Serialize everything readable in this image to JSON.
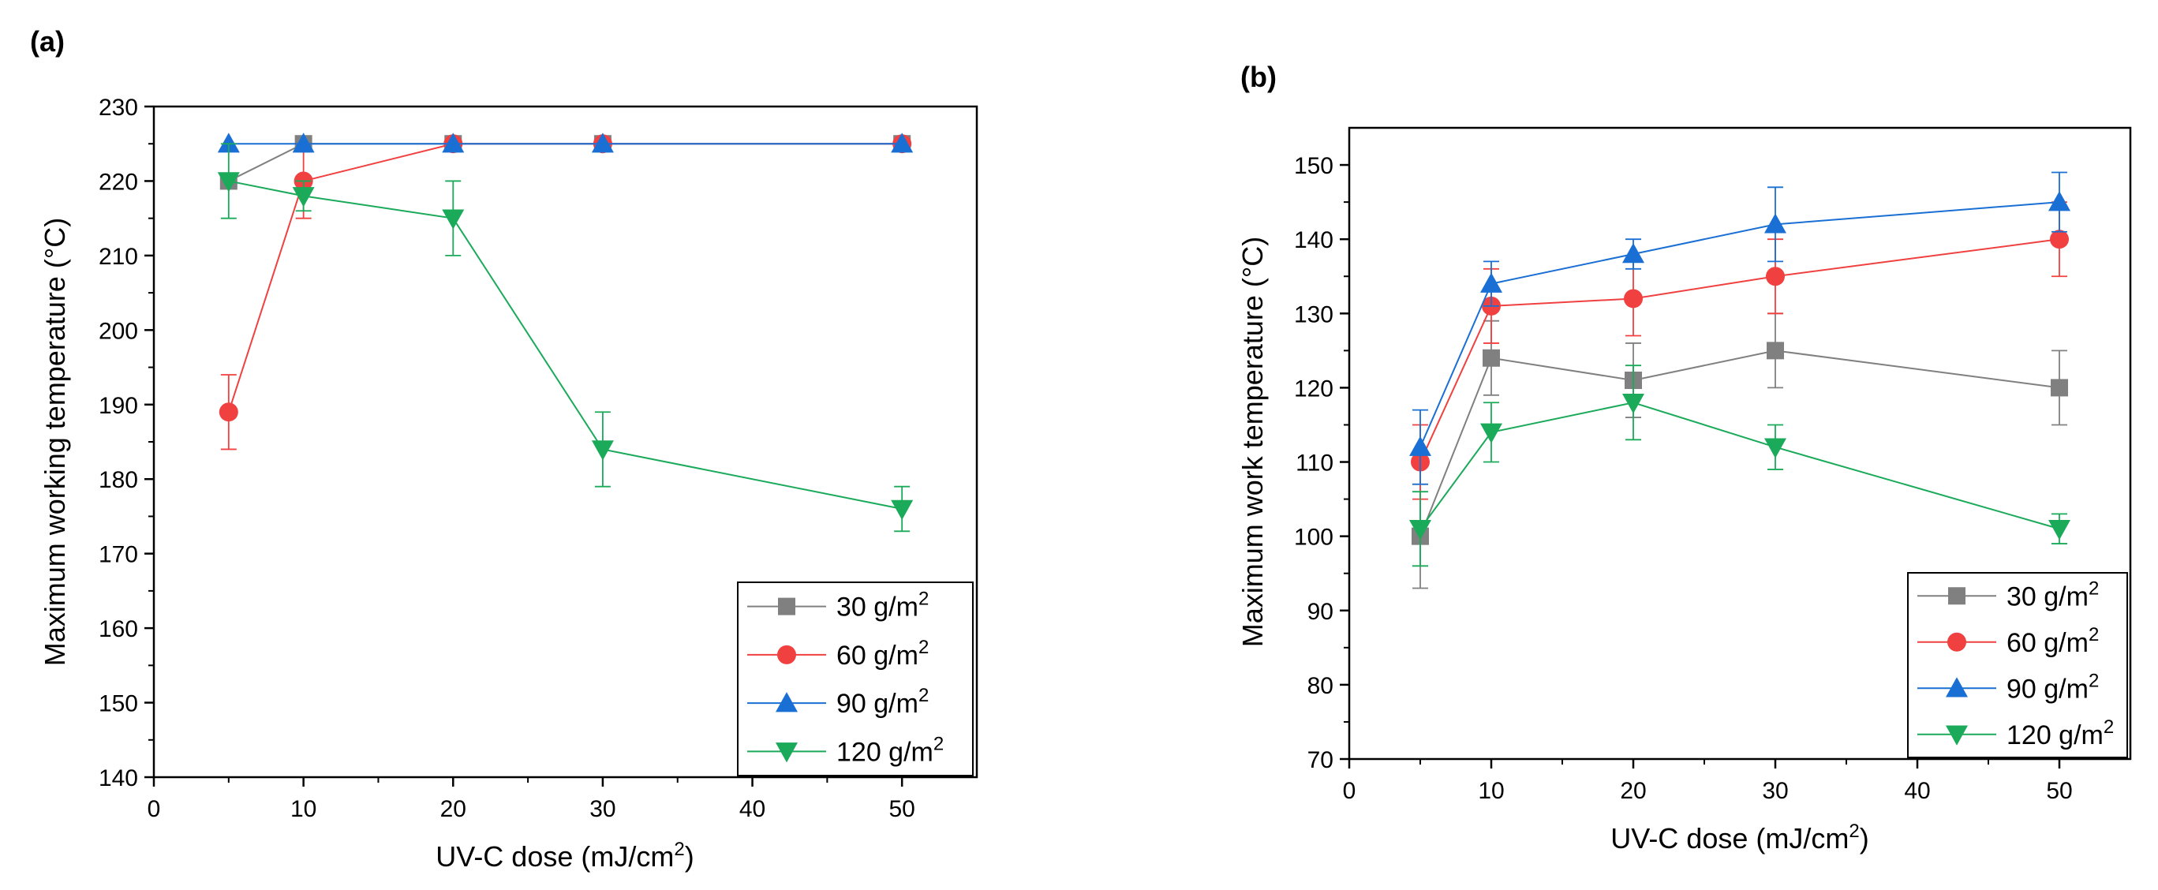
{
  "chart_data": [
    {
      "panel": "(a)",
      "type": "line",
      "xlabel": "UV-C dose (mJ/cm",
      "xlabel_sup": "2",
      "xlabel_end": ")",
      "ylabel": "Maximum working temperature (°C)",
      "xlim": [
        0,
        55
      ],
      "ylim": [
        140,
        230
      ],
      "xticks": [
        0,
        10,
        20,
        30,
        40,
        50
      ],
      "yticks": [
        140,
        150,
        160,
        170,
        180,
        190,
        200,
        210,
        220,
        230
      ],
      "legend_position": "bottom-right",
      "series": [
        {
          "name": "30 g/m",
          "sup": "2",
          "color": "#808080",
          "marker": "square",
          "x": [
            5,
            10,
            20,
            30,
            50
          ],
          "values": [
            220,
            225,
            225,
            225,
            225
          ],
          "errors": [
            0,
            0,
            0,
            0,
            0
          ]
        },
        {
          "name": "60 g/m",
          "sup": "2",
          "color": "#f04040",
          "marker": "circle",
          "x": [
            5,
            10,
            20,
            30,
            50
          ],
          "values": [
            189,
            220,
            225,
            225,
            225
          ],
          "errors": [
            5,
            5,
            0,
            0,
            0
          ]
        },
        {
          "name": "90 g/m",
          "sup": "2",
          "color": "#1a6fd4",
          "marker": "triangle-up",
          "x": [
            5,
            10,
            20,
            30,
            50
          ],
          "values": [
            225,
            225,
            225,
            225,
            225
          ],
          "errors": [
            0,
            0,
            0,
            0,
            0
          ]
        },
        {
          "name": "120 g/m",
          "sup": "2",
          "color": "#1aaa5a",
          "marker": "triangle-down",
          "x": [
            5,
            10,
            20,
            30,
            50
          ],
          "values": [
            220,
            218,
            215,
            184,
            176
          ],
          "errors": [
            5,
            2,
            5,
            5,
            3
          ]
        }
      ]
    },
    {
      "panel": "(b)",
      "type": "line",
      "xlabel": "UV-C dose (mJ/cm",
      "xlabel_sup": "2",
      "xlabel_end": ")",
      "ylabel": "Maximum work temperature (°C)",
      "xlim": [
        0,
        55
      ],
      "ylim": [
        70,
        155
      ],
      "xticks": [
        0,
        10,
        20,
        30,
        40,
        50
      ],
      "yticks": [
        70,
        80,
        90,
        100,
        110,
        120,
        130,
        140,
        150
      ],
      "legend_position": "bottom-right",
      "series": [
        {
          "name": "30 g/m",
          "sup": "2",
          "color": "#808080",
          "marker": "square",
          "x": [
            5,
            10,
            20,
            30,
            50
          ],
          "values": [
            100,
            124,
            121,
            125,
            120
          ],
          "errors": [
            7,
            5,
            5,
            5,
            5
          ]
        },
        {
          "name": "60 g/m",
          "sup": "2",
          "color": "#f04040",
          "marker": "circle",
          "x": [
            5,
            10,
            20,
            30,
            50
          ],
          "values": [
            110,
            131,
            132,
            135,
            140
          ],
          "errors": [
            5,
            5,
            5,
            5,
            5
          ]
        },
        {
          "name": "90 g/m",
          "sup": "2",
          "color": "#1a6fd4",
          "marker": "triangle-up",
          "x": [
            5,
            10,
            20,
            30,
            50
          ],
          "values": [
            112,
            134,
            138,
            142,
            145
          ],
          "errors": [
            5,
            3,
            2,
            5,
            4
          ]
        },
        {
          "name": "120 g/m",
          "sup": "2",
          "color": "#1aaa5a",
          "marker": "triangle-down",
          "x": [
            5,
            10,
            20,
            30,
            50
          ],
          "values": [
            101,
            114,
            118,
            112,
            101
          ],
          "errors": [
            5,
            4,
            5,
            3,
            2
          ]
        }
      ]
    }
  ]
}
